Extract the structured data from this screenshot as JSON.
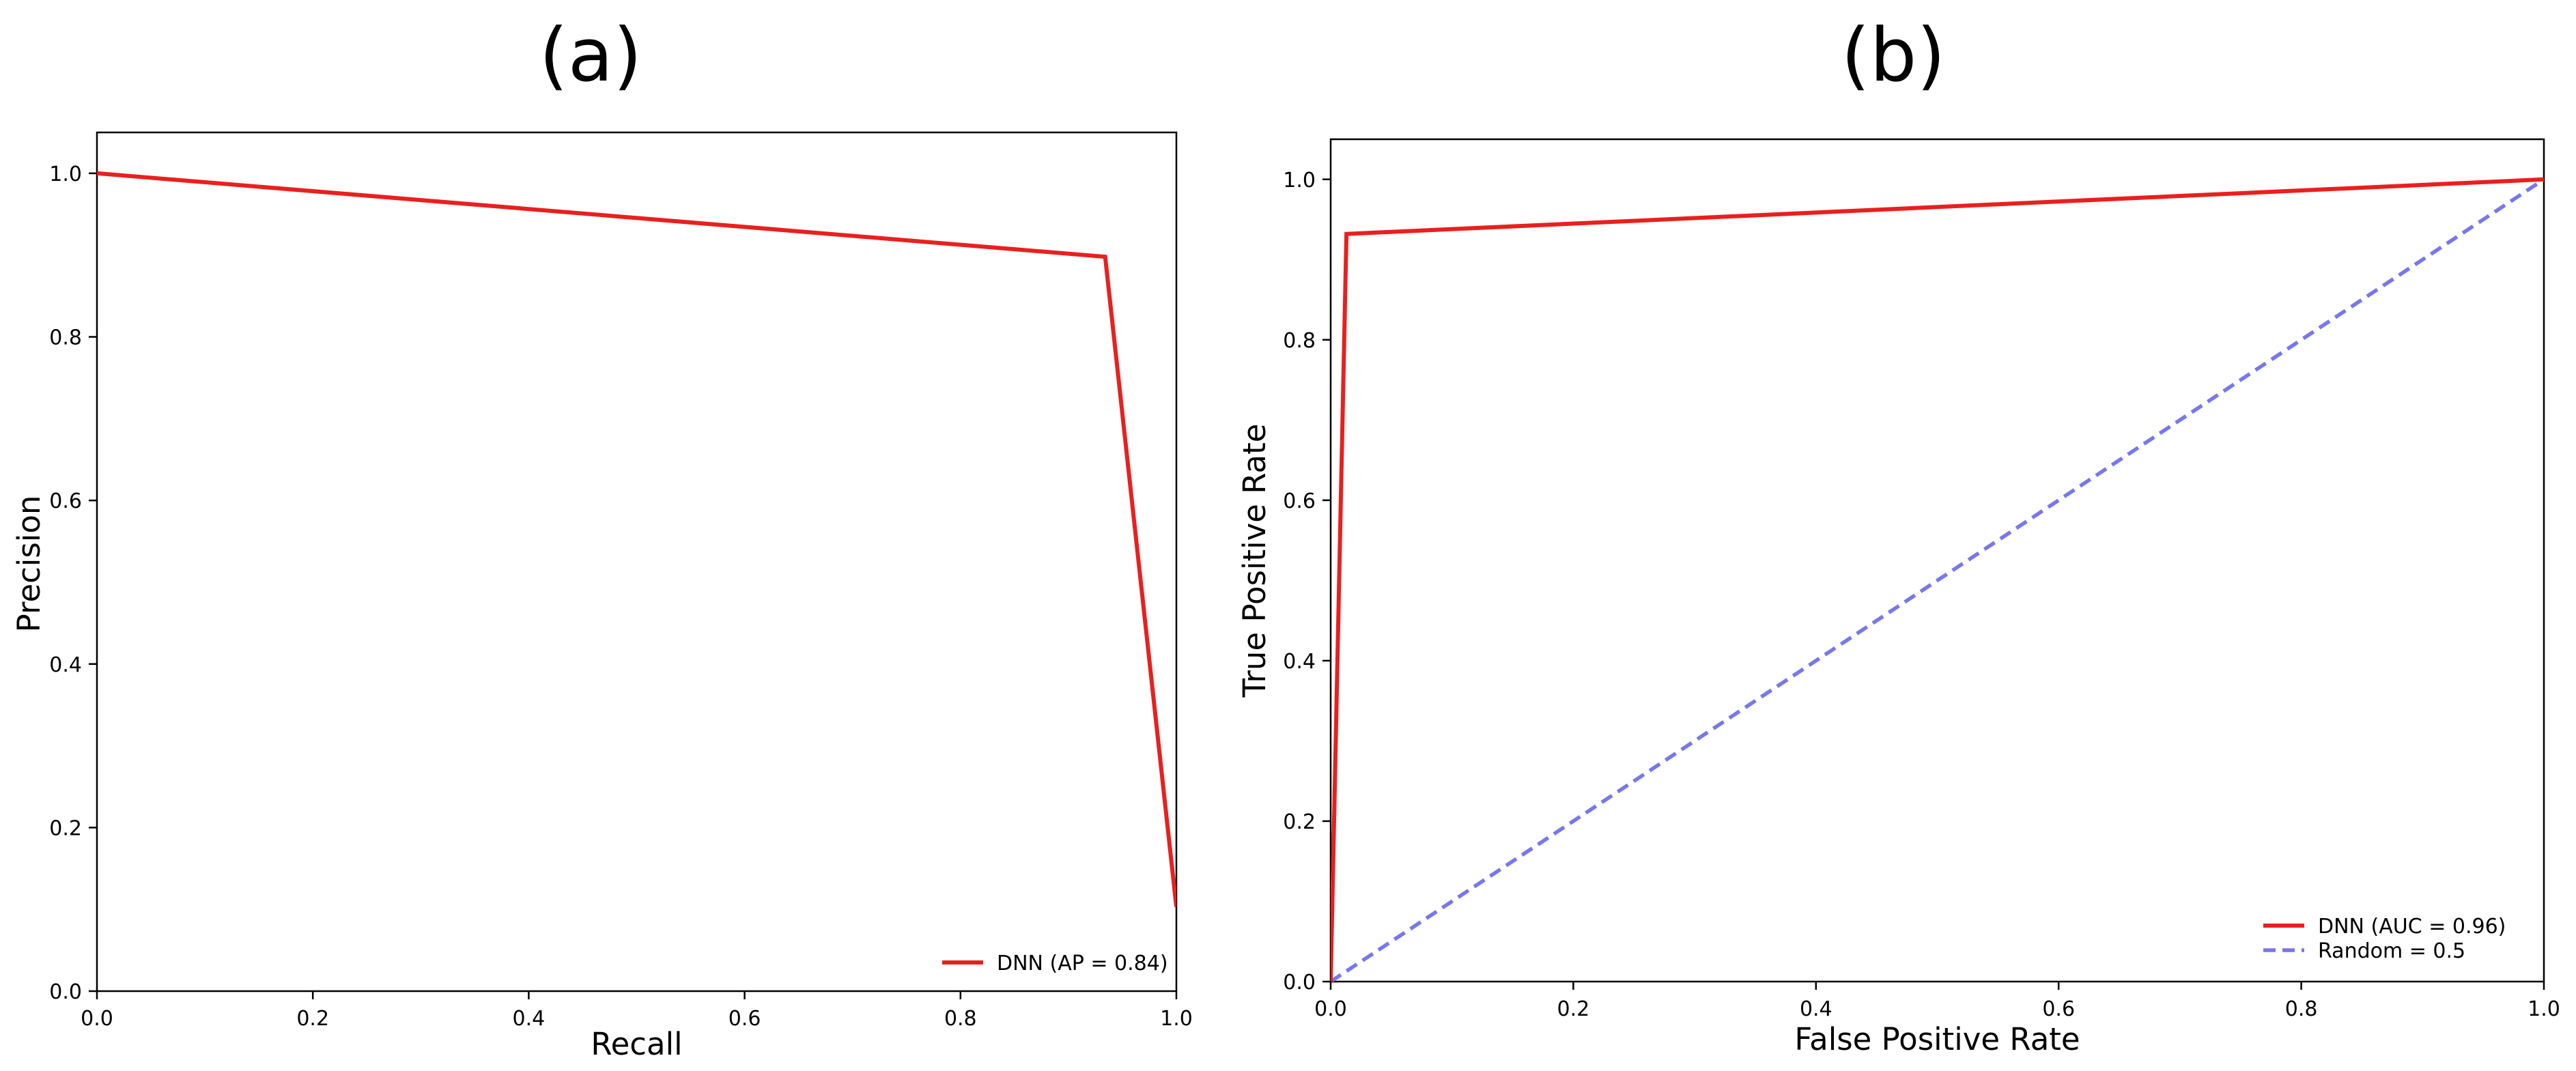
{
  "chart_data": [
    {
      "type": "line",
      "title": "(a)",
      "xlabel": "Recall",
      "ylabel": "Precision",
      "xlim": [
        0.0,
        1.0
      ],
      "ylim": [
        0.0,
        1.05
      ],
      "xticks": [
        "0.0",
        "0.2",
        "0.4",
        "0.6",
        "0.8",
        "1.0"
      ],
      "yticks": [
        "0.0",
        "0.2",
        "0.4",
        "0.6",
        "0.8",
        "1.0"
      ],
      "grid": false,
      "legend_position": "lower-right",
      "series": [
        {
          "name": "DNN (AP = 0.84)",
          "color": "#e8201e",
          "style": "solid",
          "x": [
            0.0,
            0.934,
            1.0
          ],
          "y": [
            1.0,
            0.898,
            0.103
          ]
        }
      ]
    },
    {
      "type": "line",
      "title": "(b)",
      "xlabel": "False Positive Rate",
      "ylabel": "True Positive Rate",
      "xlim": [
        0.0,
        1.0
      ],
      "ylim": [
        0.0,
        1.05
      ],
      "xticks": [
        "0.0",
        "0.2",
        "0.4",
        "0.6",
        "0.8",
        "1.0"
      ],
      "yticks": [
        "0.0",
        "0.2",
        "0.4",
        "0.6",
        "0.8",
        "1.0"
      ],
      "grid": false,
      "legend_position": "lower-right",
      "series": [
        {
          "name": "DNN (AUC = 0.96)",
          "color": "#e8201e",
          "style": "solid",
          "x": [
            0.0,
            0.013,
            1.0
          ],
          "y": [
            0.0,
            0.932,
            1.0
          ]
        },
        {
          "name": "Random = 0.5",
          "color": "#7777ee",
          "style": "dashed",
          "x": [
            0.0,
            1.0
          ],
          "y": [
            0.0,
            1.0
          ]
        }
      ]
    }
  ]
}
